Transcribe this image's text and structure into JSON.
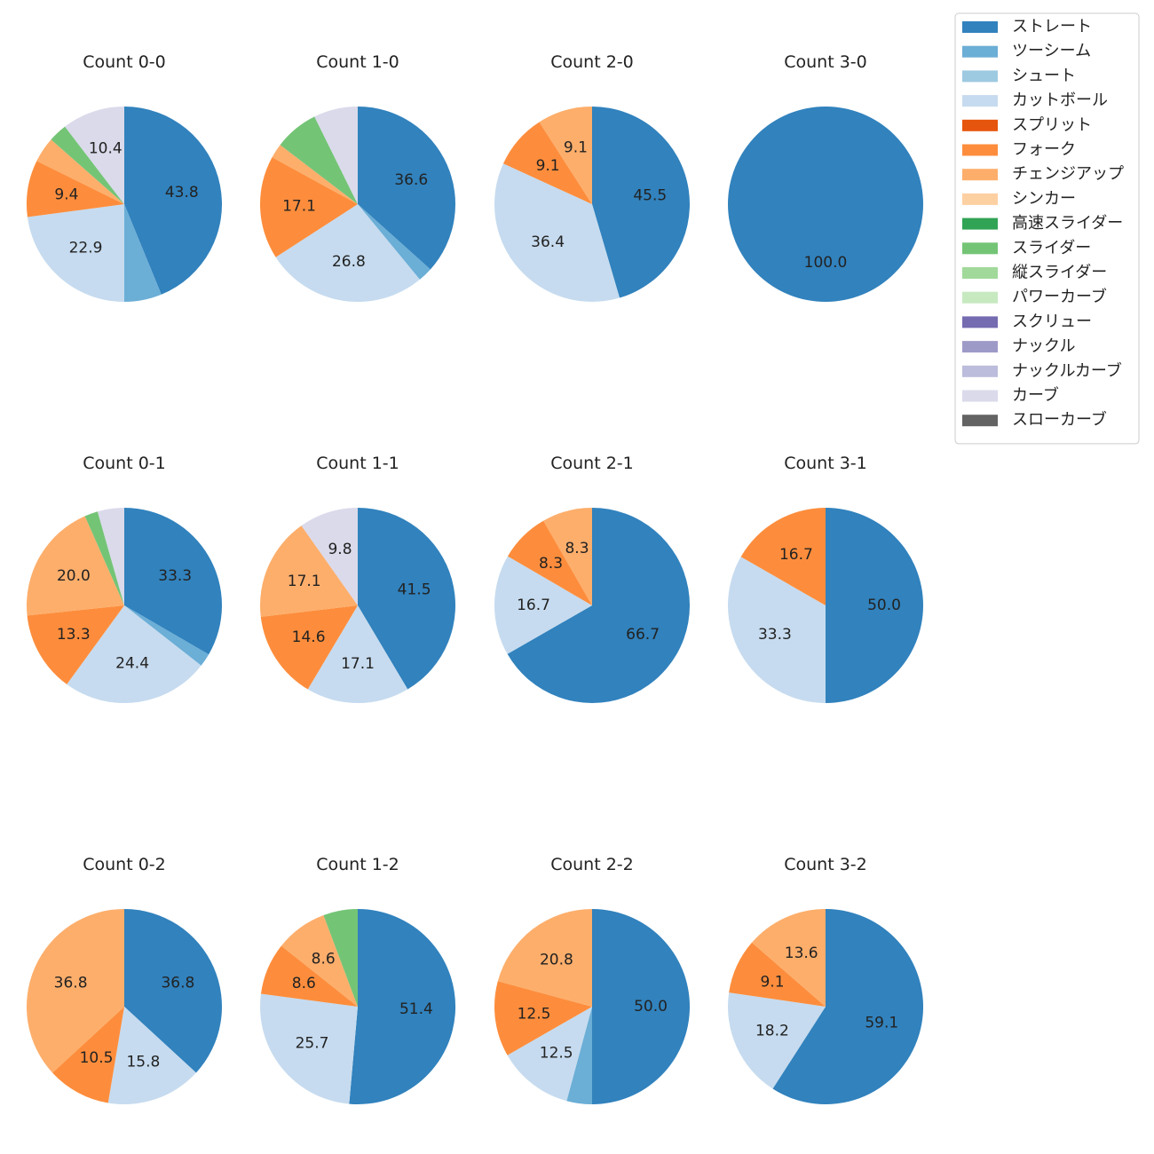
{
  "chart_data": {
    "type": "pie",
    "start_angle_deg": 90,
    "direction": "clockwise",
    "legend_position": "top-right",
    "pitch_types": [
      {
        "name": "ストレート",
        "color": "#3182bd"
      },
      {
        "name": "ツーシーム",
        "color": "#6baed6"
      },
      {
        "name": "シュート",
        "color": "#9ecae1"
      },
      {
        "name": "カットボール",
        "color": "#c6dbef"
      },
      {
        "name": "スプリット",
        "color": "#e6550d"
      },
      {
        "name": "フォーク",
        "color": "#fd8d3c"
      },
      {
        "name": "チェンジアップ",
        "color": "#fdae6b"
      },
      {
        "name": "シンカー",
        "color": "#fdd0a2"
      },
      {
        "name": "高速スライダー",
        "color": "#31a354"
      },
      {
        "name": "スライダー",
        "color": "#74c476"
      },
      {
        "name": "縦スライダー",
        "color": "#a1d99b"
      },
      {
        "name": "パワーカーブ",
        "color": "#c7e9c0"
      },
      {
        "name": "スクリュー",
        "color": "#756bb1"
      },
      {
        "name": "ナックル",
        "color": "#9e9ac8"
      },
      {
        "name": "ナックルカーブ",
        "color": "#bcbddc"
      },
      {
        "name": "カーブ",
        "color": "#dadaeb"
      },
      {
        "name": "スローカーブ",
        "color": "#636363"
      }
    ],
    "pies": [
      {
        "title": "Count 0-0",
        "slices": [
          {
            "type": "ストレート",
            "value": 43.8,
            "label": "43.8"
          },
          {
            "type": "ツーシーム",
            "value": 6.2
          },
          {
            "type": "カットボール",
            "value": 22.9,
            "label": "22.9"
          },
          {
            "type": "フォーク",
            "value": 9.4,
            "label": "9.4"
          },
          {
            "type": "チェンジアップ",
            "value": 4.2
          },
          {
            "type": "スライダー",
            "value": 3.1
          },
          {
            "type": "カーブ",
            "value": 10.4,
            "label": "10.4"
          }
        ]
      },
      {
        "title": "Count 1-0",
        "slices": [
          {
            "type": "ストレート",
            "value": 36.6,
            "label": "36.6"
          },
          {
            "type": "ツーシーム",
            "value": 2.4
          },
          {
            "type": "カットボール",
            "value": 26.8,
            "label": "26.8"
          },
          {
            "type": "フォーク",
            "value": 17.1,
            "label": "17.1"
          },
          {
            "type": "チェンジアップ",
            "value": 2.4
          },
          {
            "type": "スライダー",
            "value": 7.3
          },
          {
            "type": "カーブ",
            "value": 7.3
          }
        ]
      },
      {
        "title": "Count 2-0",
        "slices": [
          {
            "type": "ストレート",
            "value": 45.5,
            "label": "45.5"
          },
          {
            "type": "カットボール",
            "value": 36.4,
            "label": "36.4"
          },
          {
            "type": "フォーク",
            "value": 9.1,
            "label": "9.1"
          },
          {
            "type": "チェンジアップ",
            "value": 9.1,
            "label": "9.1"
          }
        ]
      },
      {
        "title": "Count 3-0",
        "slices": [
          {
            "type": "ストレート",
            "value": 100.0,
            "label": "100.0"
          }
        ]
      },
      {
        "title": "Count 0-1",
        "slices": [
          {
            "type": "ストレート",
            "value": 33.3,
            "label": "33.3"
          },
          {
            "type": "ツーシーム",
            "value": 2.2
          },
          {
            "type": "カットボール",
            "value": 24.4,
            "label": "24.4"
          },
          {
            "type": "フォーク",
            "value": 13.3,
            "label": "13.3"
          },
          {
            "type": "チェンジアップ",
            "value": 20.0,
            "label": "20.0"
          },
          {
            "type": "スライダー",
            "value": 2.2
          },
          {
            "type": "カーブ",
            "value": 4.4
          }
        ]
      },
      {
        "title": "Count 1-1",
        "slices": [
          {
            "type": "ストレート",
            "value": 41.5,
            "label": "41.5"
          },
          {
            "type": "カットボール",
            "value": 17.1,
            "label": "17.1"
          },
          {
            "type": "フォーク",
            "value": 14.6,
            "label": "14.6"
          },
          {
            "type": "チェンジアップ",
            "value": 17.1,
            "label": "17.1"
          },
          {
            "type": "カーブ",
            "value": 9.8,
            "label": "9.8"
          }
        ]
      },
      {
        "title": "Count 2-1",
        "slices": [
          {
            "type": "ストレート",
            "value": 66.7,
            "label": "66.7"
          },
          {
            "type": "カットボール",
            "value": 16.7,
            "label": "16.7"
          },
          {
            "type": "フォーク",
            "value": 8.3,
            "label": "8.3"
          },
          {
            "type": "チェンジアップ",
            "value": 8.3,
            "label": "8.3"
          }
        ]
      },
      {
        "title": "Count 3-1",
        "slices": [
          {
            "type": "ストレート",
            "value": 50.0,
            "label": "50.0"
          },
          {
            "type": "カットボール",
            "value": 33.3,
            "label": "33.3"
          },
          {
            "type": "フォーク",
            "value": 16.7,
            "label": "16.7"
          }
        ]
      },
      {
        "title": "Count 0-2",
        "slices": [
          {
            "type": "ストレート",
            "value": 36.8,
            "label": "36.8"
          },
          {
            "type": "カットボール",
            "value": 15.8,
            "label": "15.8"
          },
          {
            "type": "フォーク",
            "value": 10.5,
            "label": "10.5"
          },
          {
            "type": "チェンジアップ",
            "value": 36.8,
            "label": "36.8"
          }
        ]
      },
      {
        "title": "Count 1-2",
        "slices": [
          {
            "type": "ストレート",
            "value": 51.4,
            "label": "51.4"
          },
          {
            "type": "カットボール",
            "value": 25.7,
            "label": "25.7"
          },
          {
            "type": "フォーク",
            "value": 8.6,
            "label": "8.6"
          },
          {
            "type": "チェンジアップ",
            "value": 8.6,
            "label": "8.6"
          },
          {
            "type": "スライダー",
            "value": 5.7
          }
        ]
      },
      {
        "title": "Count 2-2",
        "slices": [
          {
            "type": "ストレート",
            "value": 50.0,
            "label": "50.0"
          },
          {
            "type": "ツーシーム",
            "value": 4.2
          },
          {
            "type": "カットボール",
            "value": 12.5,
            "label": "12.5"
          },
          {
            "type": "フォーク",
            "value": 12.5,
            "label": "12.5"
          },
          {
            "type": "チェンジアップ",
            "value": 20.8,
            "label": "20.8"
          }
        ]
      },
      {
        "title": "Count 3-2",
        "slices": [
          {
            "type": "ストレート",
            "value": 59.1,
            "label": "59.1"
          },
          {
            "type": "カットボール",
            "value": 18.2,
            "label": "18.2"
          },
          {
            "type": "フォーク",
            "value": 9.1,
            "label": "9.1"
          },
          {
            "type": "チェンジアップ",
            "value": 13.6,
            "label": "13.6"
          }
        ]
      }
    ]
  }
}
